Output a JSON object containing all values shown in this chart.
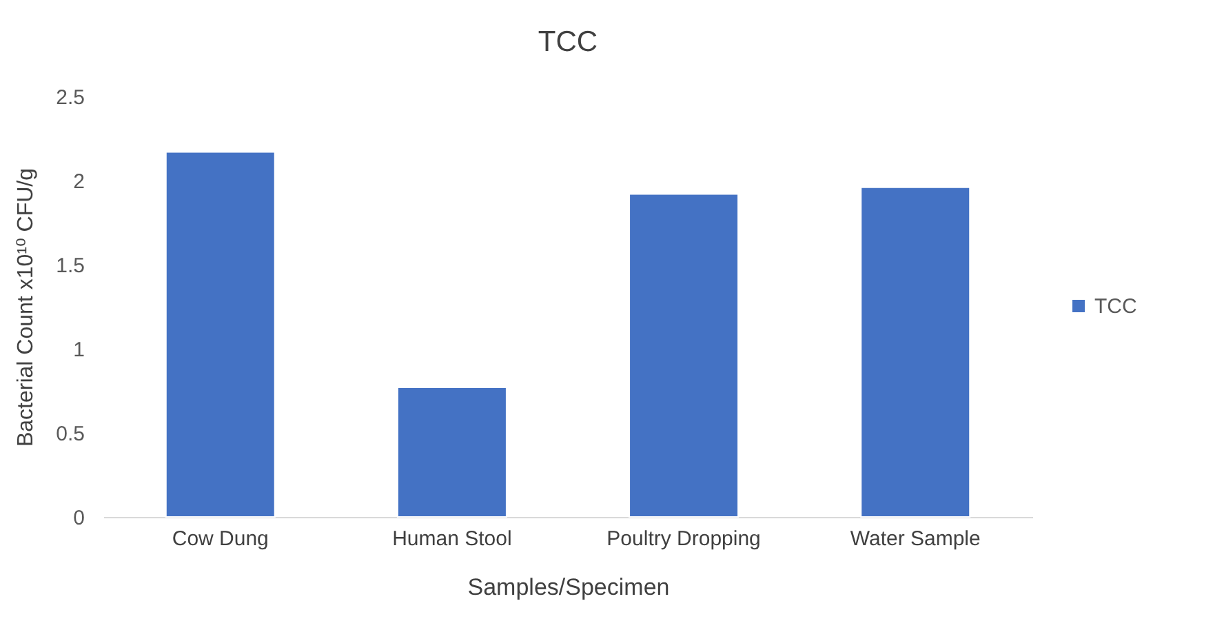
{
  "chart_data": {
    "type": "bar",
    "title": "TCC",
    "xlabel": "Samples/Specimen",
    "ylabel": "Bacterial Count x10¹⁰ CFU/g",
    "categories": [
      "Cow Dung",
      "Human Stool",
      "Poultry Dropping",
      "Water Sample"
    ],
    "series": [
      {
        "name": "TCC",
        "color": "#4472c4",
        "values": [
          2.17,
          0.77,
          1.92,
          1.96
        ]
      }
    ],
    "ylim": [
      0,
      2.5
    ],
    "yticks": [
      0,
      0.5,
      1,
      1.5,
      2,
      2.5
    ],
    "grid": false,
    "legend": "right"
  }
}
